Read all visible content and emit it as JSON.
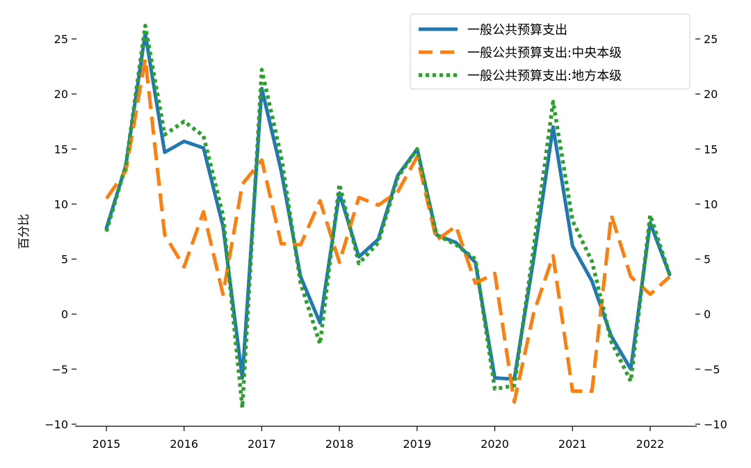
{
  "chart_data": {
    "type": "line",
    "title": "",
    "xlabel": "",
    "ylabel": "百分比",
    "ylim": [
      -10,
      27
    ],
    "xlim": [
      2014.85,
      2022.6
    ],
    "yticks": [
      -10,
      -5,
      0,
      5,
      10,
      15,
      20,
      25
    ],
    "xticks": [
      2015,
      2016,
      2017,
      2018,
      2019,
      2020,
      2021,
      2022
    ],
    "ytick_labels": [
      "−10",
      "−5",
      "0",
      "5",
      "10",
      "15",
      "20",
      "25"
    ],
    "xtick_labels": [
      "2015",
      "2016",
      "2017",
      "2018",
      "2019",
      "2020",
      "2021",
      "2022"
    ],
    "legend_position": "top-right",
    "grid": false,
    "right_axis_ticks": true,
    "x": [
      2015.0,
      2015.25,
      2015.5,
      2015.75,
      2016.0,
      2016.25,
      2016.5,
      2016.75,
      2017.0,
      2017.25,
      2017.5,
      2017.75,
      2018.0,
      2018.25,
      2018.5,
      2018.75,
      2019.0,
      2019.25,
      2019.5,
      2019.75,
      2020.0,
      2020.25,
      2020.5,
      2020.75,
      2021.0,
      2021.25,
      2021.5,
      2021.75,
      2022.0,
      2022.25
    ],
    "series": [
      {
        "name": "一般公共预算支出",
        "color": "#1f77b4",
        "style": "solid",
        "values": [
          7.8,
          13.5,
          25.5,
          14.7,
          15.7,
          15.1,
          8.0,
          -5.8,
          20.5,
          13.0,
          3.4,
          -0.8,
          11.0,
          5.2,
          6.8,
          12.6,
          15.0,
          7.2,
          6.5,
          4.7,
          -5.8,
          -5.9,
          5.0,
          17.0,
          6.2,
          3.0,
          -2.0,
          -5.0,
          8.3,
          3.6
        ]
      },
      {
        "name": "一般公共预算支出:中央本级",
        "color": "#ff7f0e",
        "style": "dashed",
        "values": [
          10.5,
          13.0,
          23.2,
          7.2,
          4.3,
          9.3,
          1.8,
          11.8,
          14.0,
          6.4,
          6.3,
          10.3,
          4.7,
          10.6,
          9.9,
          11.1,
          14.3,
          6.7,
          8.0,
          2.8,
          3.7,
          -8.0,
          0.1,
          5.3,
          -7.0,
          -7.0,
          9.0,
          3.4,
          1.8,
          3.4
        ]
      },
      {
        "name": "一般公共预算支出:地方本级",
        "color": "#2ca02c",
        "style": "dotted",
        "values": [
          7.5,
          13.5,
          26.2,
          16.3,
          17.5,
          16.2,
          9.0,
          -8.5,
          22.2,
          14.3,
          2.8,
          -2.7,
          11.8,
          4.6,
          6.5,
          12.4,
          15.0,
          7.2,
          6.3,
          5.0,
          -6.8,
          -6.5,
          6.0,
          19.3,
          8.5,
          4.8,
          -2.5,
          -6.1,
          9.0,
          3.6
        ]
      }
    ]
  }
}
